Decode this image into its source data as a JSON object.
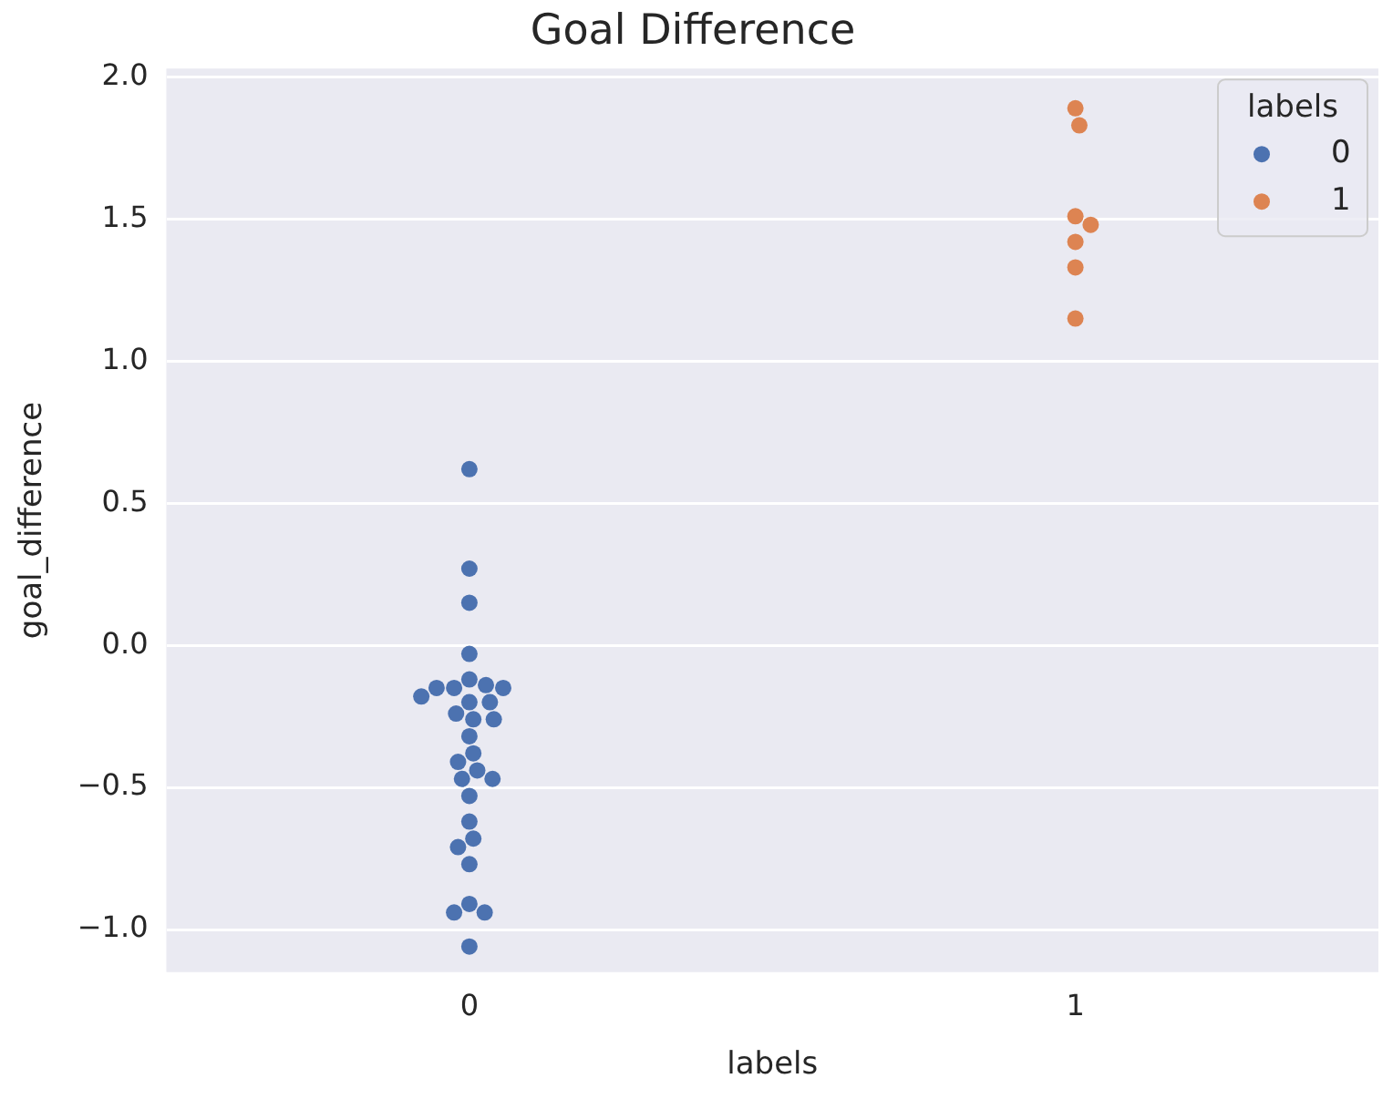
{
  "chart_data": {
    "type": "scatter",
    "title": "Goal Difference",
    "xlabel": "labels",
    "ylabel": "goal_difference",
    "legend_title": "labels",
    "categories": [
      "0",
      "1"
    ],
    "series": [
      {
        "name": "0",
        "color": "#4c72b0",
        "x": [
          "0",
          "0",
          "0",
          "0",
          "0",
          "0",
          "0",
          "0",
          "0",
          "0",
          "0",
          "0",
          "0",
          "0",
          "0",
          "0",
          "0",
          "0",
          "0",
          "0",
          "0",
          "0",
          "0",
          "0",
          "0",
          "0",
          "0",
          "0",
          "0",
          "0"
        ],
        "values": [
          0.62,
          0.27,
          0.15,
          -0.03,
          -0.12,
          -0.14,
          -0.15,
          -0.15,
          -0.18,
          -0.2,
          -0.2,
          -0.24,
          -0.26,
          -0.26,
          -0.32,
          -0.38,
          -0.41,
          -0.44,
          -0.47,
          -0.47,
          -0.53,
          -0.62,
          -0.68,
          -0.71,
          -0.77,
          -0.91,
          -0.94,
          -0.94,
          -1.06,
          -0.15
        ]
      },
      {
        "name": "1",
        "color": "#dd8452",
        "x": [
          "1",
          "1",
          "1",
          "1",
          "1",
          "1",
          "1"
        ],
        "values": [
          1.89,
          1.83,
          1.51,
          1.48,
          1.42,
          1.33,
          1.15
        ]
      }
    ],
    "ylim": [
      -1.15,
      2.03
    ],
    "yticks": [
      {
        "value": -1,
        "label": "−1.0"
      },
      {
        "value": -0.5,
        "label": "−0.5"
      },
      {
        "value": 0,
        "label": "0.0"
      },
      {
        "value": 0.5,
        "label": "0.5"
      },
      {
        "value": 1,
        "label": "1.0"
      },
      {
        "value": 1.5,
        "label": "1.5"
      },
      {
        "value": 2,
        "label": "2.0"
      }
    ],
    "grid": "y",
    "legend": "top right",
    "marker": "circle"
  }
}
